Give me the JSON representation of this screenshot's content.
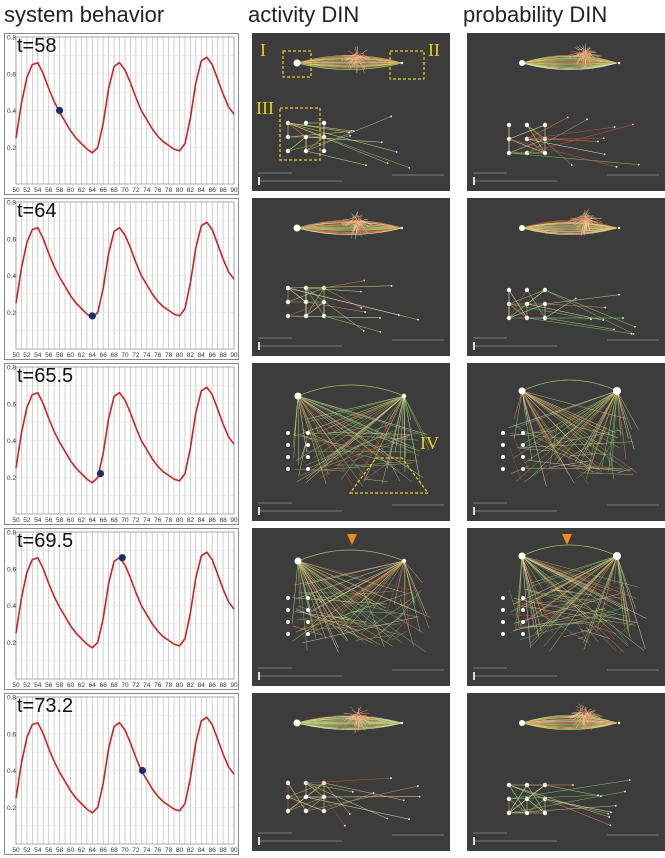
{
  "columns": {
    "system": "system behavior",
    "activity": "activity DIN",
    "probability": "probability DIN"
  },
  "panel_labels": {
    "I": "I",
    "II": "II",
    "III": "III",
    "IV": "IV"
  },
  "colors": {
    "line": "#cc2222",
    "marker": "#1f2a6b",
    "grid": "#bdbdbd",
    "net_bg": "#3c3c3c",
    "highlight_box": "#e8d21e",
    "arrow": "#f08a1c"
  },
  "chart_data": [
    {
      "type": "line",
      "annotation": "t=58",
      "marker": {
        "x": 58,
        "y": 0.4
      },
      "x": [
        50,
        51,
        52,
        53,
        54,
        55,
        56,
        57,
        58,
        59,
        60,
        61,
        62,
        63,
        64,
        65,
        66,
        67,
        68,
        69,
        70,
        71,
        72,
        73,
        74,
        75,
        76,
        77,
        78,
        79,
        80,
        81,
        82,
        83,
        84,
        85,
        86,
        87,
        88,
        89,
        90
      ],
      "series": [
        {
          "values": [
            0.25,
            0.44,
            0.58,
            0.65,
            0.66,
            0.6,
            0.52,
            0.45,
            0.39,
            0.34,
            0.29,
            0.25,
            0.22,
            0.19,
            0.17,
            0.2,
            0.33,
            0.52,
            0.64,
            0.66,
            0.62,
            0.55,
            0.47,
            0.4,
            0.35,
            0.3,
            0.26,
            0.23,
            0.21,
            0.19,
            0.18,
            0.22,
            0.36,
            0.55,
            0.67,
            0.69,
            0.65,
            0.57,
            0.49,
            0.42,
            0.38
          ]
        }
      ],
      "xlim": [
        50,
        90
      ],
      "ylim": [
        0,
        0.8
      ],
      "xticks": [
        50,
        52,
        54,
        56,
        58,
        60,
        62,
        64,
        66,
        68,
        70,
        72,
        74,
        76,
        78,
        80,
        82,
        84,
        86,
        88,
        90
      ],
      "yticks": [
        0.2,
        0.4,
        0.6,
        0.8
      ],
      "grid": true
    },
    {
      "type": "line",
      "annotation": "t=64",
      "marker": {
        "x": 64,
        "y": 0.18
      },
      "x": [
        50,
        51,
        52,
        53,
        54,
        55,
        56,
        57,
        58,
        59,
        60,
        61,
        62,
        63,
        64,
        65,
        66,
        67,
        68,
        69,
        70,
        71,
        72,
        73,
        74,
        75,
        76,
        77,
        78,
        79,
        80,
        81,
        82,
        83,
        84,
        85,
        86,
        87,
        88,
        89,
        90
      ],
      "series": [
        {
          "values": [
            0.25,
            0.44,
            0.58,
            0.65,
            0.66,
            0.6,
            0.52,
            0.45,
            0.39,
            0.34,
            0.29,
            0.25,
            0.22,
            0.19,
            0.17,
            0.2,
            0.33,
            0.52,
            0.64,
            0.66,
            0.62,
            0.55,
            0.47,
            0.4,
            0.35,
            0.3,
            0.26,
            0.23,
            0.21,
            0.19,
            0.18,
            0.22,
            0.36,
            0.55,
            0.67,
            0.69,
            0.65,
            0.57,
            0.49,
            0.42,
            0.38
          ]
        }
      ],
      "xlim": [
        50,
        90
      ],
      "ylim": [
        0,
        0.8
      ],
      "xticks": [
        50,
        52,
        54,
        56,
        58,
        60,
        62,
        64,
        66,
        68,
        70,
        72,
        74,
        76,
        78,
        80,
        82,
        84,
        86,
        88,
        90
      ],
      "yticks": [
        0.2,
        0.4,
        0.6,
        0.8
      ],
      "grid": true
    },
    {
      "type": "line",
      "annotation": "t=65.5",
      "marker": {
        "x": 65.5,
        "y": 0.22
      },
      "x": [
        50,
        51,
        52,
        53,
        54,
        55,
        56,
        57,
        58,
        59,
        60,
        61,
        62,
        63,
        64,
        65,
        66,
        67,
        68,
        69,
        70,
        71,
        72,
        73,
        74,
        75,
        76,
        77,
        78,
        79,
        80,
        81,
        82,
        83,
        84,
        85,
        86,
        87,
        88,
        89,
        90
      ],
      "series": [
        {
          "values": [
            0.25,
            0.44,
            0.58,
            0.65,
            0.66,
            0.6,
            0.52,
            0.45,
            0.39,
            0.34,
            0.29,
            0.25,
            0.22,
            0.19,
            0.17,
            0.2,
            0.33,
            0.52,
            0.64,
            0.66,
            0.62,
            0.55,
            0.47,
            0.4,
            0.35,
            0.3,
            0.26,
            0.23,
            0.21,
            0.19,
            0.18,
            0.22,
            0.36,
            0.55,
            0.67,
            0.69,
            0.65,
            0.57,
            0.49,
            0.42,
            0.38
          ]
        }
      ],
      "xlim": [
        50,
        90
      ],
      "ylim": [
        0,
        0.8
      ],
      "xticks": [
        50,
        52,
        54,
        56,
        58,
        60,
        62,
        64,
        66,
        68,
        70,
        72,
        74,
        76,
        78,
        80,
        82,
        84,
        86,
        88,
        90
      ],
      "yticks": [
        0.2,
        0.4,
        0.6,
        0.8
      ],
      "grid": true
    },
    {
      "type": "line",
      "annotation": "t=69.5",
      "marker": {
        "x": 69.5,
        "y": 0.66
      },
      "x": [
        50,
        51,
        52,
        53,
        54,
        55,
        56,
        57,
        58,
        59,
        60,
        61,
        62,
        63,
        64,
        65,
        66,
        67,
        68,
        69,
        70,
        71,
        72,
        73,
        74,
        75,
        76,
        77,
        78,
        79,
        80,
        81,
        82,
        83,
        84,
        85,
        86,
        87,
        88,
        89,
        90
      ],
      "series": [
        {
          "values": [
            0.25,
            0.44,
            0.58,
            0.65,
            0.66,
            0.6,
            0.52,
            0.45,
            0.39,
            0.34,
            0.29,
            0.25,
            0.22,
            0.19,
            0.17,
            0.2,
            0.33,
            0.52,
            0.64,
            0.66,
            0.62,
            0.55,
            0.47,
            0.4,
            0.35,
            0.3,
            0.26,
            0.23,
            0.21,
            0.19,
            0.18,
            0.22,
            0.36,
            0.55,
            0.67,
            0.69,
            0.65,
            0.57,
            0.49,
            0.42,
            0.38
          ]
        }
      ],
      "xlim": [
        50,
        90
      ],
      "ylim": [
        0,
        0.8
      ],
      "xticks": [
        50,
        52,
        54,
        56,
        58,
        60,
        62,
        64,
        66,
        68,
        70,
        72,
        74,
        76,
        78,
        80,
        82,
        84,
        86,
        88,
        90
      ],
      "yticks": [
        0.2,
        0.4,
        0.6,
        0.8
      ],
      "grid": true
    },
    {
      "type": "line",
      "annotation": "t=73.2",
      "marker": {
        "x": 73.2,
        "y": 0.4
      },
      "x": [
        50,
        51,
        52,
        53,
        54,
        55,
        56,
        57,
        58,
        59,
        60,
        61,
        62,
        63,
        64,
        65,
        66,
        67,
        68,
        69,
        70,
        71,
        72,
        73,
        74,
        75,
        76,
        77,
        78,
        79,
        80,
        81,
        82,
        83,
        84,
        85,
        86,
        87,
        88,
        89,
        90
      ],
      "series": [
        {
          "values": [
            0.25,
            0.44,
            0.58,
            0.65,
            0.66,
            0.6,
            0.52,
            0.45,
            0.39,
            0.34,
            0.29,
            0.25,
            0.22,
            0.19,
            0.17,
            0.2,
            0.33,
            0.52,
            0.64,
            0.66,
            0.62,
            0.55,
            0.47,
            0.4,
            0.35,
            0.3,
            0.26,
            0.23,
            0.21,
            0.19,
            0.18,
            0.22,
            0.36,
            0.55,
            0.67,
            0.69,
            0.65,
            0.57,
            0.49,
            0.42,
            0.38
          ]
        }
      ],
      "xlim": [
        50,
        90
      ],
      "ylim": [
        0,
        0.8
      ],
      "xticks": [
        50,
        52,
        54,
        56,
        58,
        60,
        62,
        64,
        66,
        68,
        70,
        72,
        74,
        76,
        78,
        80,
        82,
        84,
        86,
        88,
        90
      ],
      "yticks": [
        0.2,
        0.4,
        0.6,
        0.8
      ],
      "grid": true
    }
  ]
}
